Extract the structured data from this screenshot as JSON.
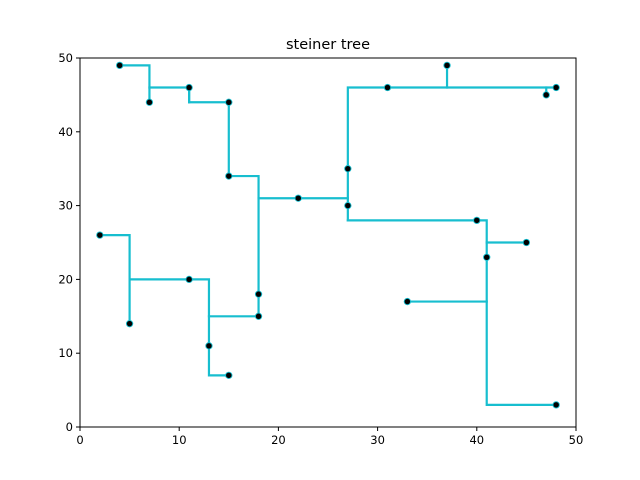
{
  "chart_data": {
    "type": "line",
    "title": "steiner tree",
    "xlabel": "",
    "ylabel": "",
    "xlim": [
      0,
      50
    ],
    "ylim": [
      0,
      50
    ],
    "xticks": [
      0,
      10,
      20,
      30,
      40,
      50
    ],
    "yticks": [
      0,
      10,
      20,
      30,
      40,
      50
    ],
    "grid": false,
    "legend": false,
    "colors": {
      "edges": "#17becf",
      "points": "#000000"
    },
    "terminals": [
      [
        4,
        49
      ],
      [
        7,
        44
      ],
      [
        11,
        46
      ],
      [
        15,
        44
      ],
      [
        15,
        34
      ],
      [
        22,
        31
      ],
      [
        27,
        35
      ],
      [
        27,
        30
      ],
      [
        31,
        46
      ],
      [
        37,
        49
      ],
      [
        47,
        45
      ],
      [
        48,
        46
      ],
      [
        2,
        26
      ],
      [
        5,
        14
      ],
      [
        11,
        20
      ],
      [
        13,
        11
      ],
      [
        15,
        7
      ],
      [
        18,
        18
      ],
      [
        18,
        15
      ],
      [
        40,
        28
      ],
      [
        45,
        25
      ],
      [
        41,
        23
      ],
      [
        33,
        17
      ],
      [
        48,
        3
      ]
    ],
    "edges": [
      [
        [
          4,
          49
        ],
        [
          7,
          49
        ],
        [
          7,
          46
        ],
        [
          11,
          46
        ],
        [
          11,
          44
        ],
        [
          15,
          44
        ],
        [
          15,
          34
        ],
        [
          18,
          34
        ],
        [
          18,
          31
        ],
        [
          27,
          31
        ]
      ],
      [
        [
          7,
          46
        ],
        [
          7,
          44
        ]
      ],
      [
        [
          11,
          46
        ],
        [
          11,
          44
        ]
      ],
      [
        [
          22,
          31
        ],
        [
          22,
          31
        ]
      ],
      [
        [
          27,
          28
        ],
        [
          27,
          46
        ],
        [
          48,
          46
        ]
      ],
      [
        [
          37,
          49
        ],
        [
          37,
          46
        ]
      ],
      [
        [
          47,
          46
        ],
        [
          47,
          45
        ]
      ],
      [
        [
          27,
          28
        ],
        [
          41,
          28
        ],
        [
          41,
          3
        ],
        [
          48,
          3
        ]
      ],
      [
        [
          41,
          25
        ],
        [
          45,
          25
        ]
      ],
      [
        [
          33,
          17
        ],
        [
          41,
          17
        ]
      ],
      [
        [
          18,
          31
        ],
        [
          18,
          15
        ],
        [
          13,
          15
        ],
        [
          13,
          20
        ],
        [
          5,
          20
        ]
      ],
      [
        [
          2,
          26
        ],
        [
          5,
          26
        ],
        [
          5,
          14
        ]
      ],
      [
        [
          13,
          15
        ],
        [
          13,
          7
        ],
        [
          15,
          7
        ]
      ]
    ]
  }
}
